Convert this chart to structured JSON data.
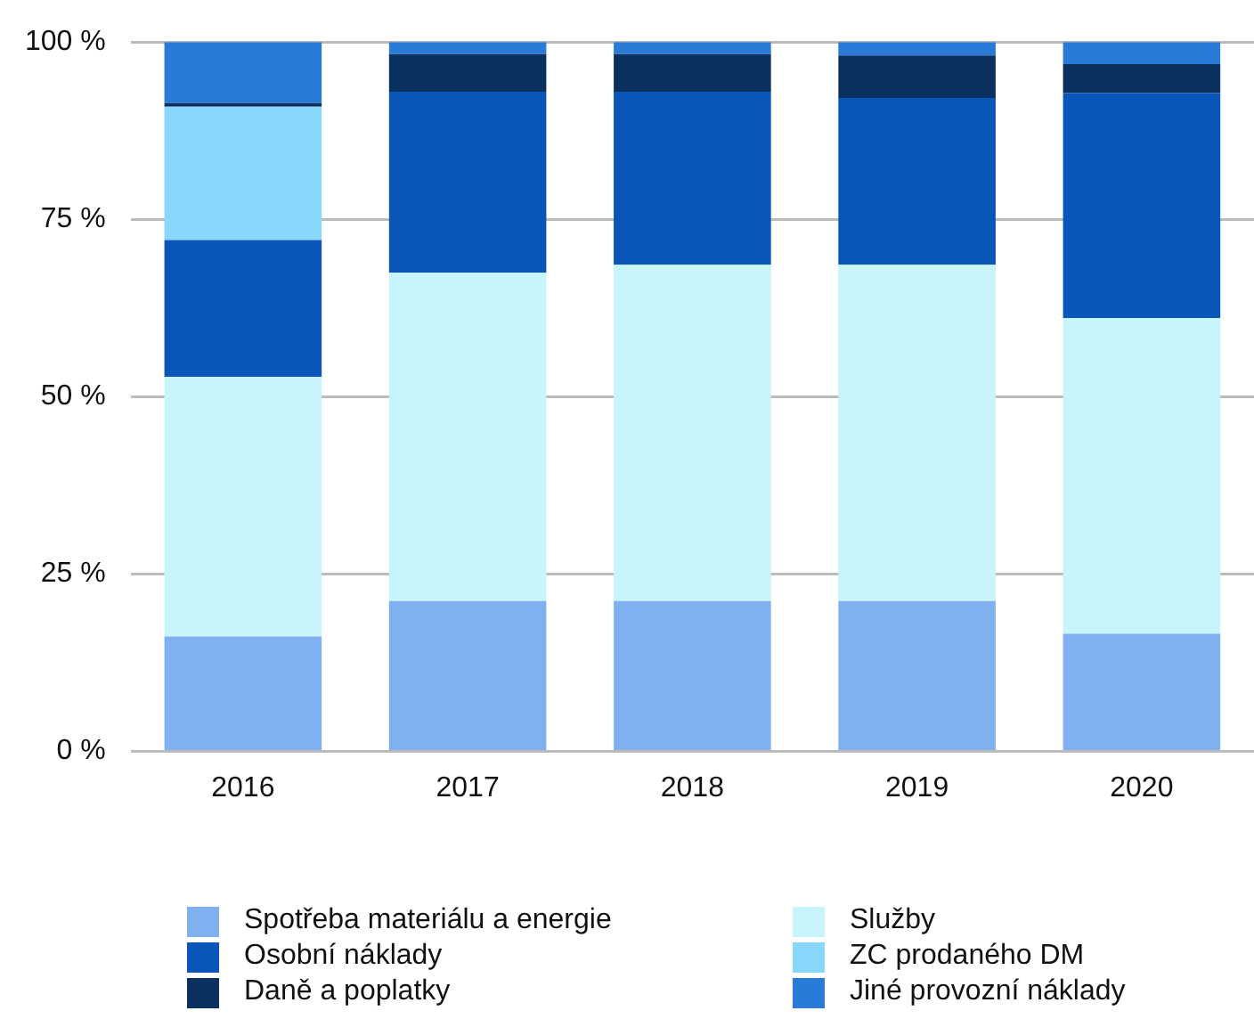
{
  "chart_data": {
    "type": "bar",
    "stacked": true,
    "categories": [
      "2016",
      "2017",
      "2018",
      "2019",
      "2020"
    ],
    "series": [
      {
        "name": "Spotřeba materiálu a energie",
        "color": "#80b0f0",
        "values": [
          16.2,
          21.2,
          21.2,
          21.2,
          16.6
        ]
      },
      {
        "name": "Služby",
        "color": "#c8f4fc",
        "values": [
          36.6,
          46.3,
          47.4,
          47.4,
          44.5
        ]
      },
      {
        "name": "Osobní náklady",
        "color": "#0a55b8",
        "values": [
          19.3,
          25.5,
          24.4,
          23.5,
          31.7
        ]
      },
      {
        "name": "ZC prodaného DM",
        "color": "#88d8fc",
        "values": [
          18.8,
          0,
          0,
          0,
          0
        ]
      },
      {
        "name": "Daně a poplatky",
        "color": "#0a3060",
        "values": [
          0.5,
          5.3,
          5.3,
          6.0,
          4.1
        ]
      },
      {
        "name": "Jiné provozní náklady",
        "color": "#2a7ad8",
        "values": [
          8.6,
          1.7,
          1.7,
          1.9,
          3.1
        ]
      }
    ],
    "ylim": [
      0,
      100
    ],
    "yticks": [
      {
        "value": 0,
        "label": "0 %"
      },
      {
        "value": 25,
        "label": "25 %"
      },
      {
        "value": 50,
        "label": "50 %"
      },
      {
        "value": 75,
        "label": "75 %"
      },
      {
        "value": 100,
        "label": "100 %"
      }
    ],
    "grid": "y",
    "legend": "bottom"
  }
}
